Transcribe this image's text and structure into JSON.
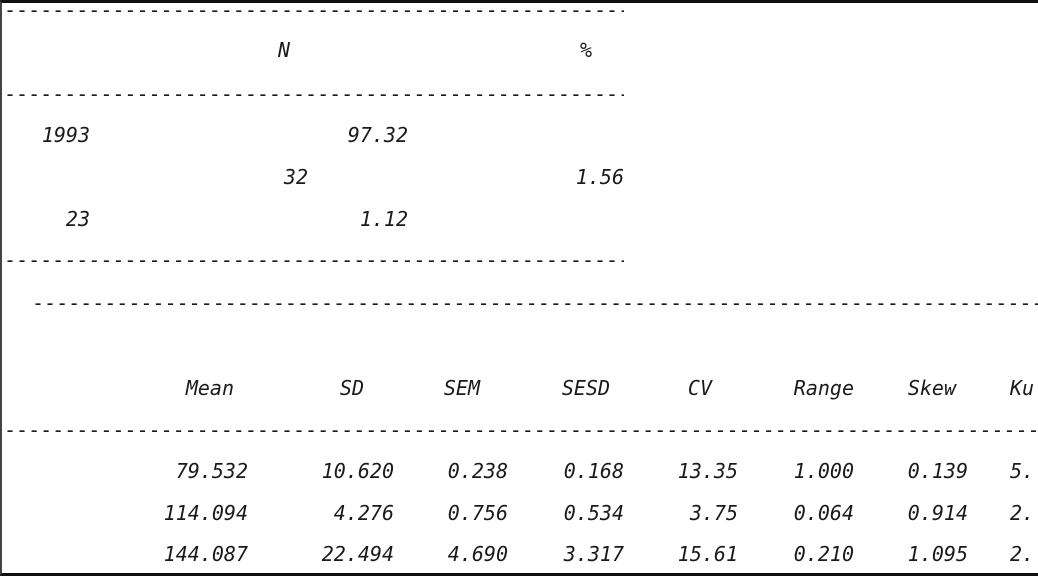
{
  "table1": {
    "rule": "----------------------------------------------------------------------------------------------------",
    "headers": {
      "n": "N",
      "pct": "%"
    },
    "rows": [
      {
        "a": "1993",
        "b": "97.32"
      },
      {
        "a": "32",
        "b": "1.56"
      },
      {
        "a": "23",
        "b": "1.12"
      }
    ]
  },
  "table2": {
    "rule": "------------------------------------------------------------------------------------------------------------------------------------",
    "headers": [
      "Mean",
      "SD",
      "SEM",
      "SESD",
      "CV",
      "Range",
      "Skew",
      "Ku"
    ],
    "rows": [
      [
        "79.532",
        "10.620",
        "0.238",
        "0.168",
        "13.35",
        "1.000",
        "0.139",
        "5."
      ],
      [
        "114.094",
        "4.276",
        "0.756",
        "0.534",
        "3.75",
        "0.064",
        "0.914",
        "2."
      ],
      [
        "144.087",
        "22.494",
        "4.690",
        "3.317",
        "15.61",
        "0.210",
        "1.095",
        "2."
      ]
    ]
  }
}
